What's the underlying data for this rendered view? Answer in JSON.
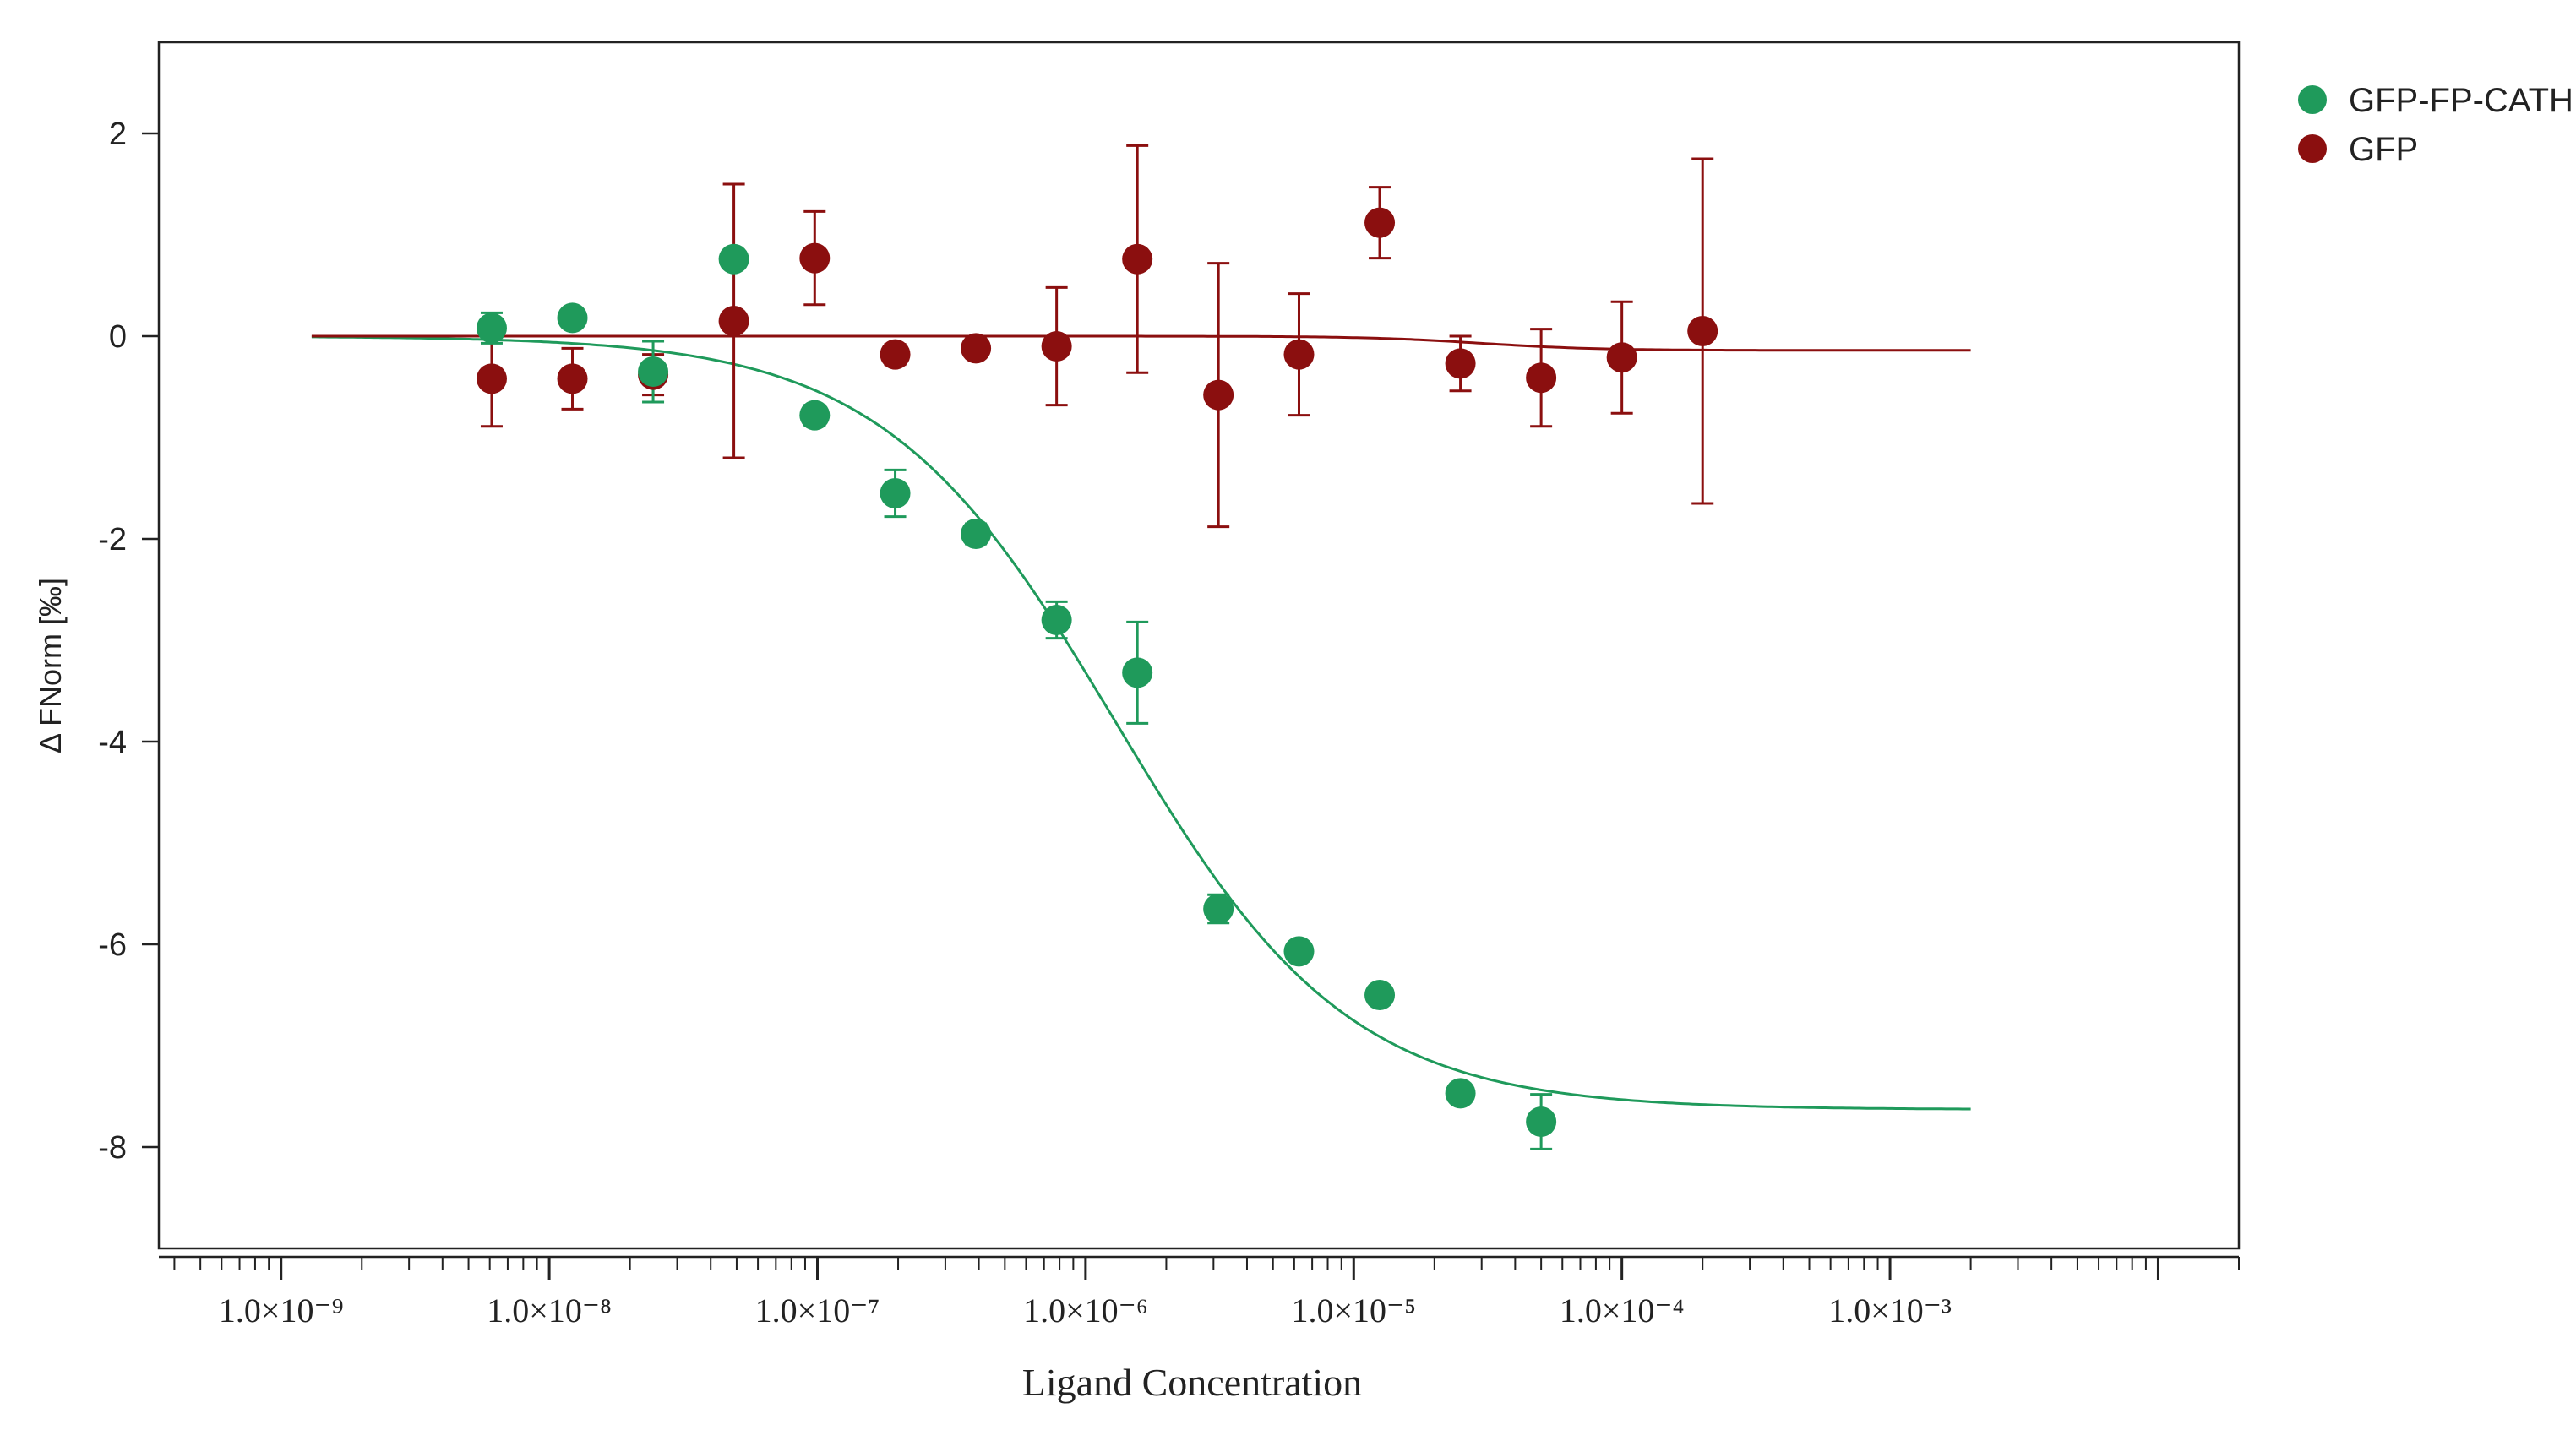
{
  "chart_data": {
    "type": "scatter",
    "title": "",
    "xlabel": "Ligand Concentration",
    "ylabel": "Δ FNorm [‰]",
    "xscale": "log",
    "xlim": [
      3.5e-10,
      0.02
    ],
    "ylim": [
      -9.0,
      2.9
    ],
    "yticks": [
      2,
      0,
      -2,
      -4,
      -6,
      -8
    ],
    "ytick_labels": [
      "2",
      "0",
      "-2",
      "-4",
      "-6",
      "-8"
    ],
    "xtick_exponents": [
      -9,
      -8,
      -7,
      -6,
      -5,
      -4,
      -3
    ],
    "xtick_labels": [
      "1.0×10⁻⁹",
      "1.0×10⁻⁸",
      "1.0×10⁻⁷",
      "1.0×10⁻⁶",
      "1.0×10⁻⁵",
      "1.0×10⁻⁴",
      "1.0×10⁻³"
    ],
    "legend_position": "top-right outside",
    "series": [
      {
        "name": "GFP-FP-CATH",
        "color": "#1f9a5b",
        "x": [
          6.1e-09,
          1.22e-08,
          2.44e-08,
          4.88e-08,
          9.77e-08,
          1.95e-07,
          3.9e-07,
          7.8e-07,
          1.56e-06,
          3.13e-06,
          6.25e-06,
          1.25e-05,
          2.5e-05,
          5e-05
        ],
        "y": [
          0.08,
          0.18,
          -0.35,
          0.76,
          -0.78,
          -1.55,
          -1.95,
          -2.8,
          -3.32,
          -5.65,
          -6.07,
          -6.5,
          -7.47,
          -7.75
        ],
        "err": [
          0.15,
          0.07,
          0.3,
          0.0,
          0.1,
          0.23,
          0.1,
          0.18,
          0.5,
          0.14,
          0.05,
          0.05,
          0.08,
          0.27
        ],
        "fit": {
          "bottom": 0.0,
          "top": -7.63,
          "ec50": 1.3e-06,
          "hill": 1.0,
          "x_range": [
            1.3e-09,
            0.002
          ]
        }
      },
      {
        "name": "GFP",
        "color": "#8b0f0f",
        "x": [
          6.1e-09,
          1.22e-08,
          2.44e-08,
          4.88e-08,
          9.77e-08,
          1.95e-07,
          3.9e-07,
          7.8e-07,
          1.56e-06,
          3.13e-06,
          6.25e-06,
          1.25e-05,
          2.5e-05,
          5e-05,
          0.0001,
          0.0002
        ],
        "y": [
          -0.42,
          -0.42,
          -0.38,
          0.15,
          0.77,
          -0.18,
          -0.12,
          -0.1,
          0.76,
          -0.58,
          -0.18,
          1.12,
          -0.27,
          -0.41,
          -0.21,
          0.05
        ],
        "err": [
          0.47,
          0.3,
          0.2,
          1.35,
          0.46,
          0.1,
          0.06,
          0.58,
          1.12,
          1.3,
          0.6,
          0.35,
          0.27,
          0.48,
          0.55,
          1.7
        ],
        "fit": {
          "bottom": 0.0,
          "top": -0.14,
          "ec50": 3e-05,
          "hill": 2.0,
          "x_range": [
            1.3e-09,
            0.002
          ]
        }
      }
    ]
  }
}
